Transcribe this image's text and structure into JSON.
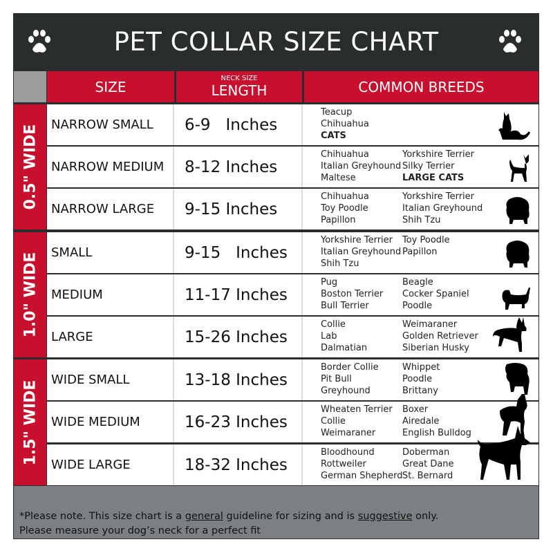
{
  "title": "PET COLLAR SIZE CHART",
  "icons": {
    "left": "paw-icon",
    "right": "paw-icon"
  },
  "colors": {
    "accent_red": "#c8102e",
    "header_dark": "#2a2d2d",
    "footer_gray": "#7d8083"
  },
  "headers": {
    "size": "SIZE",
    "length_small": "NECK SIZE",
    "length": "LENGTH",
    "breeds": "COMMON BREEDS"
  },
  "groups": [
    "0.5\" WIDE",
    "1.0\" WIDE",
    "1.5\" WIDE"
  ],
  "rows": [
    {
      "size": "NARROW SMALL",
      "length": "6-9   Inches",
      "col1": [
        "Teacup",
        "Chihuahua",
        "CATS"
      ],
      "col2": [],
      "animal": "cat-icon"
    },
    {
      "size": "NARROW MEDIUM",
      "length": "8-12 Inches",
      "col1": [
        "Chihuahua",
        "Italian Greyhound",
        "Maltese"
      ],
      "col2": [
        "Yorkshire Terrier",
        "Silky Terrier",
        "LARGE CATS"
      ],
      "animal": "chihuahua-icon"
    },
    {
      "size": "NARROW LARGE",
      "length": "9-15 Inches",
      "col1": [
        "Chihuahua",
        "Toy Poodle",
        "Papillon"
      ],
      "col2": [
        "Yorkshire Terrier",
        "Italian Greyhound",
        "Shih Tzu"
      ],
      "animal": "pomeranian-icon"
    },
    {
      "size": "SMALL",
      "length": "9-15   Inches",
      "col1": [
        "Yorkshire Terrier",
        "Italian Greyhound",
        "Shih Tzu"
      ],
      "col2": [
        "Toy Poodle",
        "Papillon"
      ],
      "animal": "pomeranian-icon"
    },
    {
      "size": "MEDIUM",
      "length": "11-17 Inches",
      "col1": [
        "Pug",
        "Boston Terrier",
        "Bull Terrier"
      ],
      "col2": [
        "Beagle",
        "Cocker Spaniel",
        "Poodle"
      ],
      "animal": "dachshund-icon"
    },
    {
      "size": "LARGE",
      "length": "15-26 Inches",
      "col1": [
        "Collie",
        "Lab",
        "Dalmatian"
      ],
      "col2": [
        "Weimaraner",
        "Golden Retriever",
        "Siberian Husky"
      ],
      "animal": "shepherd-icon"
    },
    {
      "size": "WIDE SMALL",
      "length": "13-18 Inches",
      "col1": [
        "Border Collie",
        "Pit Bull",
        "Greyhound"
      ],
      "col2": [
        "Whippet",
        "Poodle",
        "Brittany"
      ],
      "animal": "bulldog-icon"
    },
    {
      "size": "WIDE MEDIUM",
      "length": "16-23 Inches",
      "col1": [
        "Wheaten Terrier",
        "Collie",
        "Weimaraner"
      ],
      "col2": [
        "Boxer",
        "Airedale",
        "English Bulldog"
      ],
      "animal": "pitbull-icon"
    },
    {
      "size": "WIDE LARGE",
      "length": "18-32 Inches",
      "col1": [
        "Bloodhound",
        "Rottweiler",
        "German Shepherd"
      ],
      "col2": [
        "Doberman",
        "Great Dane",
        "St. Bernard"
      ],
      "animal": "doberman-icon"
    }
  ],
  "bold_breeds": [
    "CATS",
    "LARGE CATS"
  ],
  "footer": {
    "line1_a": "*Please note. This size chart is a ",
    "line1_u1": "general",
    "line1_b": " guideline for sizing and is ",
    "line1_u2": "suggestive",
    "line1_c": " only.",
    "line2": "Please measure your dog’s neck for a perfect fit"
  }
}
